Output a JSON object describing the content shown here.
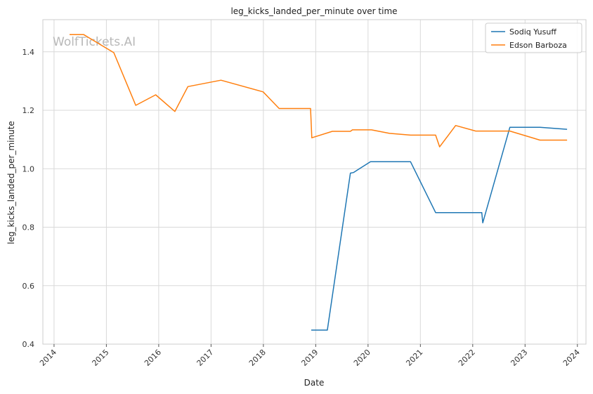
{
  "chart_data": {
    "type": "line",
    "title": "leg_kicks_landed_per_minute over time",
    "xlabel": "Date",
    "ylabel": "leg_kicks_landed_per_minute",
    "watermark": "WolfTickets.AI",
    "x_ticks": [
      "2014",
      "2015",
      "2016",
      "2017",
      "2018",
      "2019",
      "2020",
      "2021",
      "2022",
      "2023",
      "2024"
    ],
    "y_ticks": [
      "0.4",
      "0.6",
      "0.8",
      "1.0",
      "1.2",
      "1.4"
    ],
    "xlim": [
      "2013-10-15",
      "2024-03-01"
    ],
    "ylim": [
      0.4,
      1.51
    ],
    "grid": true,
    "legend_position": "top-right",
    "series": [
      {
        "name": "Sodiq Yusuff",
        "color": "#1f77b4",
        "points": [
          [
            "2018-12-01",
            0.448
          ],
          [
            "2019-03-23",
            0.448
          ],
          [
            "2019-08-31",
            0.985
          ],
          [
            "2019-09-21",
            0.987
          ],
          [
            "2020-01-18",
            1.024
          ],
          [
            "2020-10-24",
            1.024
          ],
          [
            "2021-04-17",
            0.85
          ],
          [
            "2022-03-05",
            0.85
          ],
          [
            "2022-03-12",
            0.815
          ],
          [
            "2022-09-17",
            1.142
          ],
          [
            "2023-04-15",
            1.142
          ],
          [
            "2023-10-21",
            1.135
          ]
        ]
      },
      {
        "name": "Edson Barboza",
        "color": "#ff7f0e",
        "points": [
          [
            "2014-04-19",
            1.459
          ],
          [
            "2014-07-26",
            1.459
          ],
          [
            "2015-02-22",
            1.397
          ],
          [
            "2015-07-25",
            1.217
          ],
          [
            "2015-12-11",
            1.253
          ],
          [
            "2016-04-23",
            1.196
          ],
          [
            "2016-07-23",
            1.281
          ],
          [
            "2017-03-11",
            1.303
          ],
          [
            "2017-12-30",
            1.263
          ],
          [
            "2018-04-21",
            1.206
          ],
          [
            "2018-11-26",
            1.206
          ],
          [
            "2018-12-05",
            1.106
          ],
          [
            "2019-04-27",
            1.128
          ],
          [
            "2019-08-31",
            1.128
          ],
          [
            "2019-09-14",
            1.133
          ],
          [
            "2020-01-25",
            1.133
          ],
          [
            "2020-05-30",
            1.121
          ],
          [
            "2020-10-24",
            1.115
          ],
          [
            "2021-04-17",
            1.115
          ],
          [
            "2021-05-15",
            1.075
          ],
          [
            "2021-09-04",
            1.148
          ],
          [
            "2022-01-22",
            1.129
          ],
          [
            "2022-09-17",
            1.129
          ],
          [
            "2023-04-15",
            1.098
          ],
          [
            "2023-10-21",
            1.098
          ]
        ]
      }
    ]
  }
}
